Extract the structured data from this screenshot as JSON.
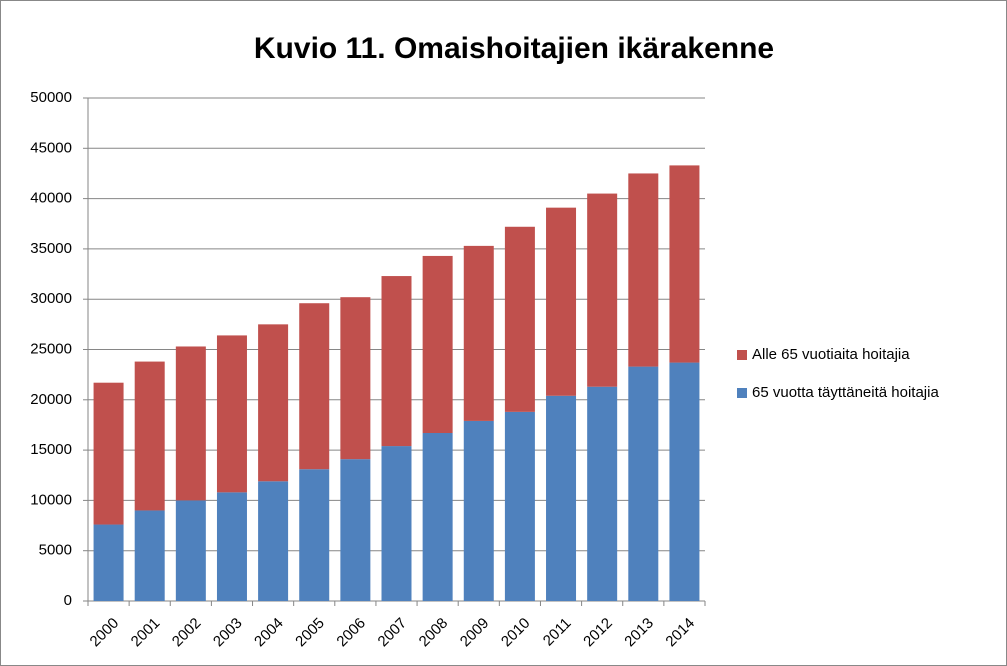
{
  "chart_data": {
    "type": "stacked_bar",
    "title": "Kuvio 11. Omaishoitajien ikärakenne",
    "categories": [
      "2000",
      "2001",
      "2002",
      "2003",
      "2004",
      "2005",
      "2006",
      "2007",
      "2008",
      "2009",
      "2010",
      "2011",
      "2012",
      "2013",
      "2014"
    ],
    "series": [
      {
        "name": "65 vuotta täyttäneitä hoitajia",
        "color": "#4f81bd",
        "values": [
          7600,
          9000,
          10000,
          10800,
          11900,
          13100,
          14100,
          15400,
          16700,
          17900,
          18800,
          20400,
          21300,
          23300,
          23700
        ]
      },
      {
        "name": "Alle 65 vuotiaita hoitajia",
        "color": "#c0504d",
        "values": [
          14100,
          14800,
          15300,
          15600,
          15600,
          16500,
          16100,
          16900,
          17600,
          17400,
          18400,
          18700,
          19200,
          19200,
          19600
        ]
      }
    ],
    "ylim": [
      0,
      50000
    ],
    "yticks": [
      0,
      5000,
      10000,
      15000,
      20000,
      25000,
      30000,
      35000,
      40000,
      45000,
      50000
    ],
    "grid": true,
    "legend": "right"
  }
}
